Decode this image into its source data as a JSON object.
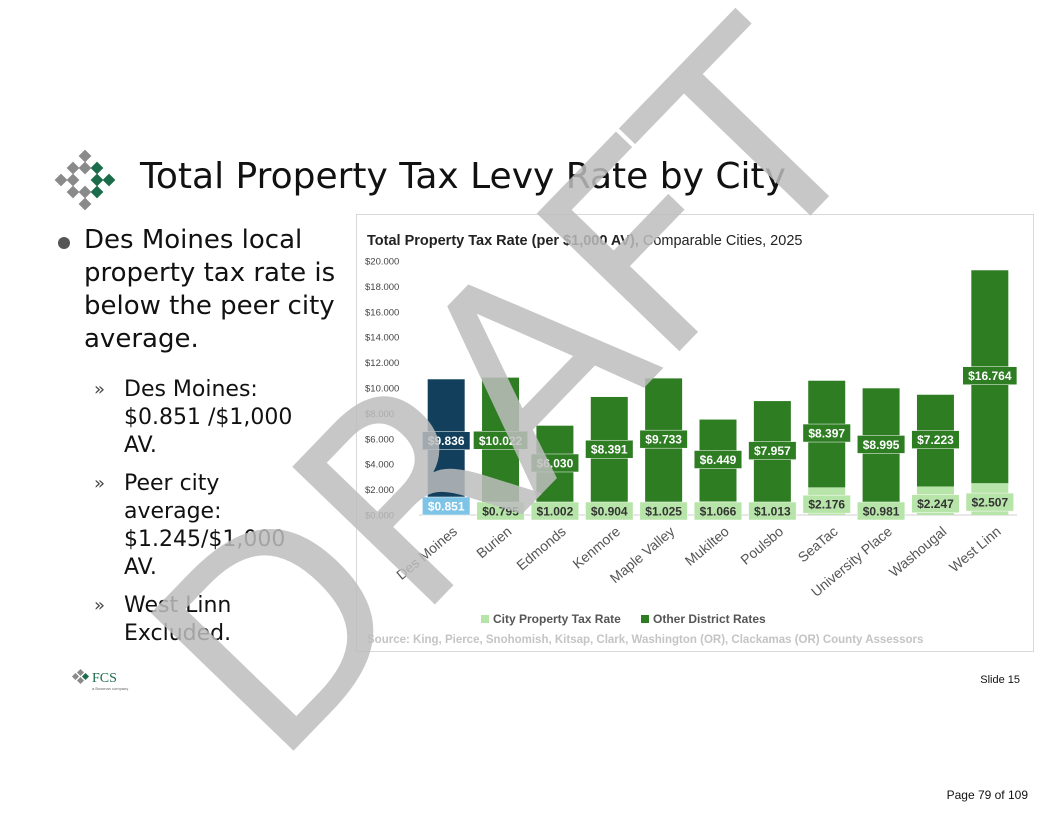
{
  "slide": {
    "title": "Total Property Tax Levy Rate by City",
    "bullet_main": "Des Moines local property tax rate is below the peer city average.",
    "sub_bullets": [
      "Des Moines: $0.851 /$1,000 AV.",
      "Peer city average: $1.245/$1,000 AV.",
      "West Linn Excluded."
    ],
    "arrow_glyph": "»",
    "slide_number": "Slide 15",
    "page_number": "Page 79 of 109",
    "watermark": "DRAFT",
    "footer_logo_text": "FCS",
    "footer_logo_sub": "a Bowman company"
  },
  "colors": {
    "city_rate": "#b7e4a8",
    "other_rate": "#2e7d23",
    "des_moines_city": "#7ec4e6",
    "des_moines_other": "#123f5c",
    "logo_green": "#1c6b4a",
    "logo_gray": "#8a8a8a",
    "watermark": "#bdbdbd"
  },
  "chart_data": {
    "type": "bar",
    "stacked": true,
    "title_bold": "Total Property Tax Rate (per $1,000 AV),",
    "title_rest": " Comparable Cities, 2025",
    "categories": [
      "Des Moines",
      "Burien",
      "Edmonds",
      "Kenmore",
      "Maple Valley",
      "Mukilteo",
      "Poulsbo",
      "SeaTac",
      "University Place",
      "Washougal",
      "West Linn"
    ],
    "series": [
      {
        "name": "City Property Tax Rate",
        "values": [
          0.851,
          0.795,
          1.002,
          0.904,
          1.025,
          1.066,
          1.013,
          2.176,
          0.981,
          2.247,
          2.507
        ]
      },
      {
        "name": "Other District Rates",
        "values": [
          9.836,
          10.022,
          6.03,
          8.391,
          9.733,
          6.449,
          7.957,
          8.397,
          8.995,
          7.223,
          16.764
        ]
      }
    ],
    "value_labels_city": [
      "$0.851",
      "$0.795",
      "$1.002",
      "$0.904",
      "$1.025",
      "$1.066",
      "$1.013",
      "$2.176",
      "$0.981",
      "$2.247",
      "$2.507"
    ],
    "value_labels_other": [
      "$9.836",
      "$10.022",
      "$6.030",
      "$8.391",
      "$9.733",
      "$6.449",
      "$7.957",
      "$8.397",
      "$8.995",
      "$7.223",
      "$16.764"
    ],
    "y_ticks": [
      "$0.000",
      "$2.000",
      "$4.000",
      "$6.000",
      "$8.000",
      "$10.000",
      "$12.000",
      "$14.000",
      "$16.000",
      "$18.000",
      "$20.000"
    ],
    "ylim": [
      0,
      20
    ],
    "legend_position": "bottom",
    "source": "Source: King, Pierce, Snohomish, Kitsap, Clark, Washington (OR), Clackamas (OR) County Assessors"
  }
}
